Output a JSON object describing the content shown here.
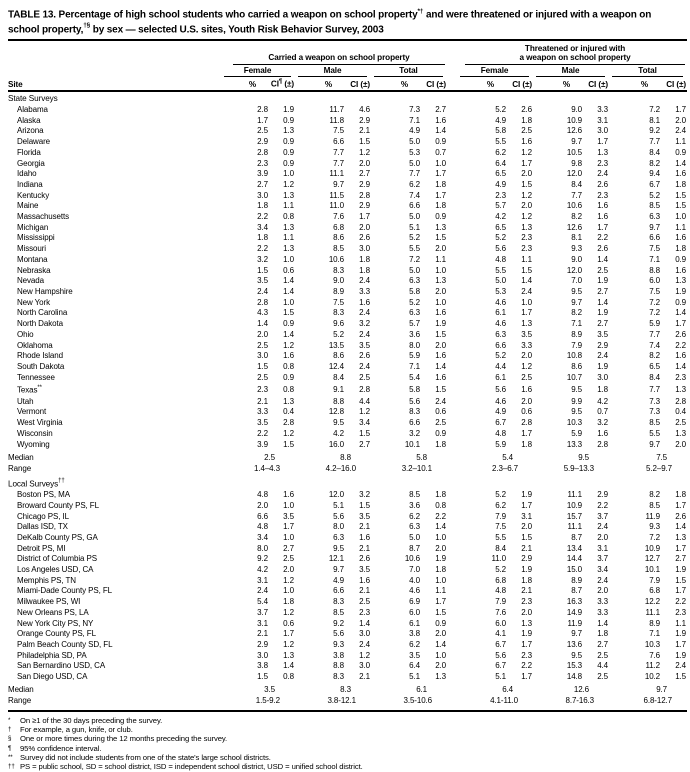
{
  "title": {
    "part1": "TABLE 13. Percentage of high school students who carried a weapon on school property",
    "sup1": "*†",
    "part2": " and were threatened or injured with a weapon on school property,",
    "sup2": "†§",
    "part3": " by sex — selected U.S. sites, Youth Risk Behavior Survey, 2003"
  },
  "header": {
    "carried_group": "Carried a weapon on school property",
    "threatened_line1": "Threatened or injured with",
    "threatened_line2": "a weapon on school property",
    "subgroups": [
      "Female",
      "Male",
      "Total"
    ],
    "site": "Site",
    "pct": "%",
    "ci": "CI (±)",
    "ci_first_base": "CI",
    "ci_first_sup": "¶",
    "ci_first_tail": " (±)"
  },
  "sections": [
    {
      "heading": "State Surveys",
      "heading_sup": "",
      "median_label": "Median",
      "range_label": "Range",
      "rows": [
        {
          "site": "Alabama",
          "values": [
            "2.8",
            "1.9",
            "11.7",
            "4.6",
            "7.3",
            "2.7",
            "5.2",
            "2.6",
            "9.0",
            "3.3",
            "7.2",
            "1.7"
          ]
        },
        {
          "site": "Alaska",
          "values": [
            "1.7",
            "0.9",
            "11.8",
            "2.9",
            "7.1",
            "1.6",
            "4.9",
            "1.8",
            "10.9",
            "3.1",
            "8.1",
            "2.0"
          ]
        },
        {
          "site": "Arizona",
          "values": [
            "2.5",
            "1.3",
            "7.5",
            "2.1",
            "4.9",
            "1.4",
            "5.8",
            "2.5",
            "12.6",
            "3.0",
            "9.2",
            "2.4"
          ]
        },
        {
          "site": "Delaware",
          "values": [
            "2.9",
            "0.9",
            "6.6",
            "1.5",
            "5.0",
            "0.9",
            "5.5",
            "1.6",
            "9.7",
            "1.7",
            "7.7",
            "1.1"
          ]
        },
        {
          "site": "Florida",
          "values": [
            "2.8",
            "0.9",
            "7.7",
            "1.2",
            "5.3",
            "0.7",
            "6.2",
            "1.2",
            "10.5",
            "1.3",
            "8.4",
            "0.9"
          ]
        },
        {
          "site": "Georgia",
          "values": [
            "2.3",
            "0.9",
            "7.7",
            "2.0",
            "5.0",
            "1.0",
            "6.4",
            "1.7",
            "9.8",
            "2.3",
            "8.2",
            "1.4"
          ]
        },
        {
          "site": "Idaho",
          "values": [
            "3.9",
            "1.0",
            "11.1",
            "2.7",
            "7.7",
            "1.7",
            "6.5",
            "2.0",
            "12.0",
            "2.4",
            "9.4",
            "1.6"
          ]
        },
        {
          "site": "Indiana",
          "values": [
            "2.7",
            "1.2",
            "9.7",
            "2.9",
            "6.2",
            "1.8",
            "4.9",
            "1.5",
            "8.4",
            "2.6",
            "6.7",
            "1.8"
          ]
        },
        {
          "site": "Kentucky",
          "values": [
            "3.0",
            "1.3",
            "11.5",
            "2.8",
            "7.4",
            "1.7",
            "2.3",
            "1.2",
            "7.7",
            "2.3",
            "5.2",
            "1.5"
          ]
        },
        {
          "site": "Maine",
          "values": [
            "1.8",
            "1.1",
            "11.0",
            "2.9",
            "6.6",
            "1.8",
            "5.7",
            "2.0",
            "10.6",
            "1.6",
            "8.5",
            "1.5"
          ]
        },
        {
          "site": "Massachusetts",
          "values": [
            "2.2",
            "0.8",
            "7.6",
            "1.7",
            "5.0",
            "0.9",
            "4.2",
            "1.2",
            "8.2",
            "1.6",
            "6.3",
            "1.0"
          ]
        },
        {
          "site": "Michigan",
          "values": [
            "3.4",
            "1.3",
            "6.8",
            "2.0",
            "5.1",
            "1.3",
            "6.5",
            "1.3",
            "12.6",
            "1.7",
            "9.7",
            "1.1"
          ]
        },
        {
          "site": "Mississippi",
          "values": [
            "1.8",
            "1.1",
            "8.6",
            "2.6",
            "5.2",
            "1.5",
            "5.2",
            "2.3",
            "8.1",
            "2.2",
            "6.6",
            "1.6"
          ]
        },
        {
          "site": "Missouri",
          "values": [
            "2.2",
            "1.3",
            "8.5",
            "3.0",
            "5.5",
            "2.0",
            "5.6",
            "2.3",
            "9.3",
            "2.6",
            "7.5",
            "1.8"
          ]
        },
        {
          "site": "Montana",
          "values": [
            "3.2",
            "1.0",
            "10.6",
            "1.8",
            "7.2",
            "1.1",
            "4.8",
            "1.1",
            "9.0",
            "1.4",
            "7.1",
            "0.9"
          ]
        },
        {
          "site": "Nebraska",
          "values": [
            "1.5",
            "0.6",
            "8.3",
            "1.8",
            "5.0",
            "1.0",
            "5.5",
            "1.5",
            "12.0",
            "2.5",
            "8.8",
            "1.6"
          ]
        },
        {
          "site": "Nevada",
          "values": [
            "3.5",
            "1.4",
            "9.0",
            "2.4",
            "6.3",
            "1.3",
            "5.0",
            "1.4",
            "7.0",
            "1.9",
            "6.0",
            "1.3"
          ]
        },
        {
          "site": "New Hampshire",
          "values": [
            "2.4",
            "1.4",
            "8.9",
            "3.3",
            "5.8",
            "2.0",
            "5.3",
            "2.4",
            "9.5",
            "2.7",
            "7.5",
            "1.9"
          ]
        },
        {
          "site": "New York",
          "values": [
            "2.8",
            "1.0",
            "7.5",
            "1.6",
            "5.2",
            "1.0",
            "4.6",
            "1.0",
            "9.7",
            "1.4",
            "7.2",
            "0.9"
          ]
        },
        {
          "site": "North Carolina",
          "values": [
            "4.3",
            "1.5",
            "8.3",
            "2.4",
            "6.3",
            "1.6",
            "6.1",
            "1.7",
            "8.2",
            "1.9",
            "7.2",
            "1.4"
          ]
        },
        {
          "site": "North Dakota",
          "values": [
            "1.4",
            "0.9",
            "9.6",
            "3.2",
            "5.7",
            "1.9",
            "4.6",
            "1.3",
            "7.1",
            "2.7",
            "5.9",
            "1.7"
          ]
        },
        {
          "site": "Ohio",
          "values": [
            "2.0",
            "1.4",
            "5.2",
            "2.4",
            "3.6",
            "1.5",
            "6.3",
            "3.5",
            "8.9",
            "3.5",
            "7.7",
            "2.6"
          ]
        },
        {
          "site": "Oklahoma",
          "values": [
            "2.5",
            "1.2",
            "13.5",
            "3.5",
            "8.0",
            "2.0",
            "6.6",
            "3.3",
            "7.9",
            "2.9",
            "7.4",
            "2.2"
          ]
        },
        {
          "site": "Rhode Island",
          "values": [
            "3.0",
            "1.6",
            "8.6",
            "2.6",
            "5.9",
            "1.6",
            "5.2",
            "2.0",
            "10.8",
            "2.4",
            "8.2",
            "1.6"
          ]
        },
        {
          "site": "South Dakota",
          "values": [
            "1.5",
            "0.8",
            "12.4",
            "2.4",
            "7.1",
            "1.4",
            "4.4",
            "1.2",
            "8.6",
            "1.9",
            "6.5",
            "1.4"
          ]
        },
        {
          "site": "Tennessee",
          "values": [
            "2.5",
            "0.9",
            "8.4",
            "2.5",
            "5.4",
            "1.6",
            "6.1",
            "2.5",
            "10.7",
            "3.0",
            "8.4",
            "2.3"
          ]
        },
        {
          "site": "Texas",
          "site_sup": "**",
          "values": [
            "2.3",
            "0.8",
            "9.1",
            "2.8",
            "5.8",
            "1.5",
            "5.6",
            "1.6",
            "9.5",
            "1.8",
            "7.7",
            "1.3"
          ]
        },
        {
          "site": "Utah",
          "values": [
            "2.1",
            "1.3",
            "8.8",
            "4.4",
            "5.6",
            "2.4",
            "4.6",
            "2.0",
            "9.9",
            "4.2",
            "7.3",
            "2.8"
          ]
        },
        {
          "site": "Vermont",
          "values": [
            "3.3",
            "0.4",
            "12.8",
            "1.2",
            "8.3",
            "0.6",
            "4.9",
            "0.6",
            "9.5",
            "0.7",
            "7.3",
            "0.4"
          ]
        },
        {
          "site": "West Virginia",
          "values": [
            "3.5",
            "2.8",
            "9.5",
            "3.4",
            "6.6",
            "2.5",
            "6.7",
            "2.8",
            "10.3",
            "3.2",
            "8.5",
            "2.5"
          ]
        },
        {
          "site": "Wisconsin",
          "values": [
            "2.2",
            "1.2",
            "4.2",
            "1.5",
            "3.2",
            "0.9",
            "4.8",
            "1.7",
            "5.9",
            "1.6",
            "5.5",
            "1.3"
          ]
        },
        {
          "site": "Wyoming",
          "values": [
            "3.9",
            "1.5",
            "16.0",
            "2.7",
            "10.1",
            "1.8",
            "5.9",
            "1.8",
            "13.3",
            "2.8",
            "9.7",
            "2.0"
          ]
        }
      ],
      "median": [
        "2.5",
        "8.8",
        "5.8",
        "5.4",
        "9.5",
        "7.5"
      ],
      "range": [
        "1.4–4.3",
        "4.2–16.0",
        "3.2–10.1",
        "2.3–6.7",
        "5.9–13.3",
        "5.2–9.7"
      ]
    },
    {
      "heading": "Local Surveys",
      "heading_sup": "††",
      "median_label": "Median",
      "range_label": "Range",
      "rows": [
        {
          "site": "Boston PS, MA",
          "values": [
            "4.8",
            "1.6",
            "12.0",
            "3.2",
            "8.5",
            "1.8",
            "5.2",
            "1.9",
            "11.1",
            "2.9",
            "8.2",
            "1.8"
          ]
        },
        {
          "site": "Broward County PS, FL",
          "values": [
            "2.0",
            "1.0",
            "5.1",
            "1.5",
            "3.6",
            "0.8",
            "6.2",
            "1.7",
            "10.9",
            "2.2",
            "8.5",
            "1.7"
          ]
        },
        {
          "site": "Chicago PS, IL",
          "values": [
            "6.6",
            "3.5",
            "5.6",
            "3.5",
            "6.2",
            "2.2",
            "7.9",
            "3.1",
            "15.7",
            "3.7",
            "11.9",
            "2.6"
          ]
        },
        {
          "site": "Dallas ISD, TX",
          "values": [
            "4.8",
            "1.7",
            "8.0",
            "2.1",
            "6.3",
            "1.4",
            "7.5",
            "2.0",
            "11.1",
            "2.4",
            "9.3",
            "1.4"
          ]
        },
        {
          "site": "DeKalb County PS, GA",
          "values": [
            "3.4",
            "1.0",
            "6.3",
            "1.6",
            "5.0",
            "1.0",
            "5.5",
            "1.5",
            "8.7",
            "2.0",
            "7.2",
            "1.3"
          ]
        },
        {
          "site": "Detroit PS, MI",
          "values": [
            "8.0",
            "2.7",
            "9.5",
            "2.1",
            "8.7",
            "2.0",
            "8.4",
            "2.1",
            "13.4",
            "3.1",
            "10.9",
            "1.7"
          ]
        },
        {
          "site": "District of Columbia PS",
          "values": [
            "9.2",
            "2.5",
            "12.1",
            "2.6",
            "10.6",
            "1.9",
            "11.0",
            "2.9",
            "14.4",
            "3.7",
            "12.7",
            "2.7"
          ]
        },
        {
          "site": "Los Angeles USD, CA",
          "values": [
            "4.2",
            "2.0",
            "9.7",
            "3.5",
            "7.0",
            "1.8",
            "5.2",
            "1.9",
            "15.0",
            "3.4",
            "10.1",
            "1.9"
          ]
        },
        {
          "site": "Memphis PS, TN",
          "values": [
            "3.1",
            "1.2",
            "4.9",
            "1.6",
            "4.0",
            "1.0",
            "6.8",
            "1.8",
            "8.9",
            "2.4",
            "7.9",
            "1.5"
          ]
        },
        {
          "site": "Miami-Dade County PS, FL",
          "values": [
            "2.4",
            "1.0",
            "6.6",
            "2.1",
            "4.6",
            "1.1",
            "4.8",
            "2.1",
            "8.7",
            "2.0",
            "6.8",
            "1.7"
          ]
        },
        {
          "site": "Milwaukee PS, WI",
          "values": [
            "5.4",
            "1.8",
            "8.3",
            "2.5",
            "6.9",
            "1.7",
            "7.9",
            "2.3",
            "16.3",
            "3.3",
            "12.2",
            "2.2"
          ]
        },
        {
          "site": "New Orleans PS, LA",
          "values": [
            "3.7",
            "1.2",
            "8.5",
            "2.3",
            "6.0",
            "1.5",
            "7.6",
            "2.0",
            "14.9",
            "3.3",
            "11.1",
            "2.3"
          ]
        },
        {
          "site": "New York City PS, NY",
          "values": [
            "3.1",
            "0.6",
            "9.2",
            "1.4",
            "6.1",
            "0.9",
            "6.0",
            "1.3",
            "11.9",
            "1.4",
            "8.9",
            "1.1"
          ]
        },
        {
          "site": "Orange County PS, FL",
          "values": [
            "2.1",
            "1.7",
            "5.6",
            "3.0",
            "3.8",
            "2.0",
            "4.1",
            "1.9",
            "9.7",
            "1.8",
            "7.1",
            "1.9"
          ]
        },
        {
          "site": "Palm Beach County SD, FL",
          "values": [
            "2.9",
            "1.2",
            "9.3",
            "2.4",
            "6.2",
            "1.4",
            "6.7",
            "1.7",
            "13.6",
            "2.7",
            "10.3",
            "1.7"
          ]
        },
        {
          "site": "Philadelphia SD, PA",
          "values": [
            "3.0",
            "1.3",
            "3.8",
            "1.2",
            "3.5",
            "1.0",
            "5.6",
            "2.3",
            "9.5",
            "2.5",
            "7.6",
            "1.9"
          ]
        },
        {
          "site": "San Bernardino USD, CA",
          "values": [
            "3.8",
            "1.4",
            "8.8",
            "3.0",
            "6.4",
            "2.0",
            "6.7",
            "2.2",
            "15.3",
            "4.4",
            "11.2",
            "2.4"
          ]
        },
        {
          "site": "San Diego USD, CA",
          "values": [
            "1.5",
            "0.8",
            "8.3",
            "2.1",
            "5.1",
            "1.3",
            "5.1",
            "1.7",
            "14.8",
            "2.5",
            "10.2",
            "1.5"
          ]
        }
      ],
      "median": [
        "3.5",
        "8.3",
        "6.1",
        "6.4",
        "12.6",
        "9.7"
      ],
      "range": [
        "1.5-9.2",
        "3.8-12.1",
        "3.5-10.6",
        "4.1-11.0",
        "8.7-16.3",
        "6.8-12.7"
      ]
    }
  ],
  "footnotes": [
    {
      "marker": "*",
      "text": "On ≥1 of the 30 days preceding the survey."
    },
    {
      "marker": "†",
      "text": "For example, a gun, knife, or club."
    },
    {
      "marker": "§",
      "text": "One or more times during the 12 months preceding the survey."
    },
    {
      "marker": "¶",
      "text": "95% confidence interval."
    },
    {
      "marker": "**",
      "text": "Survey did not include students from one of the state's large school districts."
    },
    {
      "marker": "††",
      "text": "PS = public school, SD = school district, ISD = independent school district, USD = unified school district."
    }
  ]
}
